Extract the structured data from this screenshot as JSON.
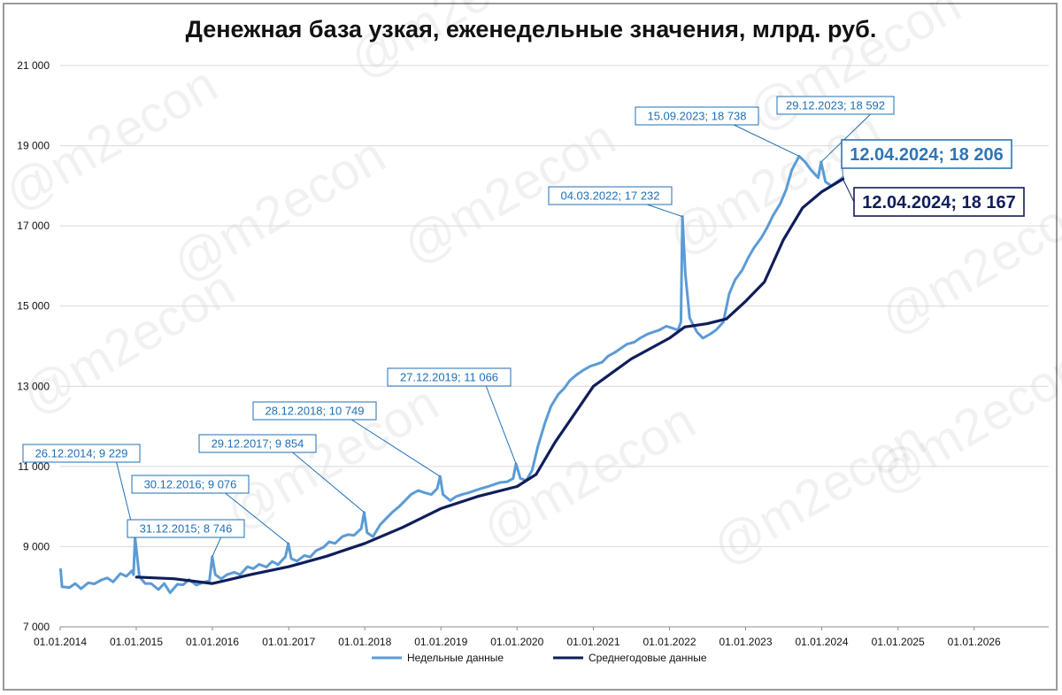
{
  "chart_data": {
    "type": "line",
    "title": "Денежная база узкая, еженедельные значения, млрд. руб.",
    "ylim": [
      7000,
      21000
    ],
    "yticks": [
      7000,
      9000,
      11000,
      13000,
      15000,
      17000,
      19000,
      21000
    ],
    "ytick_labels": [
      "7 000",
      "9 000",
      "11 000",
      "13 000",
      "15 000",
      "17 000",
      "19 000",
      "21 000"
    ],
    "xlim": [
      "2014-01-01",
      "2026-12-31"
    ],
    "xticks": [
      "2014-01-01",
      "2015-01-01",
      "2016-01-01",
      "2017-01-01",
      "2018-01-01",
      "2019-01-01",
      "2020-01-01",
      "2021-01-01",
      "2022-01-01",
      "2023-01-01",
      "2024-01-01",
      "2025-01-01",
      "2026-01-01"
    ],
    "xtick_labels": [
      "01.01.2014",
      "01.01.2015",
      "01.01.2016",
      "01.01.2017",
      "01.01.2018",
      "01.01.2019",
      "01.01.2020",
      "01.01.2021",
      "01.01.2022",
      "01.01.2023",
      "01.01.2024",
      "01.01.2025",
      "01.01.2026"
    ],
    "grid": true,
    "legend_position": "bottom",
    "series": [
      {
        "name": "Недельные данные",
        "color": "#5b9bd5",
        "points": [
          [
            "2014-01-03",
            8430
          ],
          [
            "2014-01-10",
            8000
          ],
          [
            "2014-02-14",
            7980
          ],
          [
            "2014-03-14",
            8080
          ],
          [
            "2014-04-11",
            7950
          ],
          [
            "2014-05-16",
            8100
          ],
          [
            "2014-06-13",
            8070
          ],
          [
            "2014-07-18",
            8170
          ],
          [
            "2014-08-15",
            8220
          ],
          [
            "2014-09-12",
            8120
          ],
          [
            "2014-10-17",
            8330
          ],
          [
            "2014-11-14",
            8260
          ],
          [
            "2014-12-12",
            8400
          ],
          [
            "2014-12-19",
            8300
          ],
          [
            "2014-12-26",
            9229
          ],
          [
            "2015-01-16",
            8250
          ],
          [
            "2015-02-13",
            8080
          ],
          [
            "2015-03-13",
            8080
          ],
          [
            "2015-04-17",
            7930
          ],
          [
            "2015-05-15",
            8080
          ],
          [
            "2015-06-12",
            7850
          ],
          [
            "2015-07-17",
            8060
          ],
          [
            "2015-08-14",
            8050
          ],
          [
            "2015-09-11",
            8180
          ],
          [
            "2015-10-16",
            8040
          ],
          [
            "2015-11-13",
            8100
          ],
          [
            "2015-12-18",
            8150
          ],
          [
            "2015-12-31",
            8746
          ],
          [
            "2016-01-15",
            8300
          ],
          [
            "2016-02-12",
            8200
          ],
          [
            "2016-03-11",
            8300
          ],
          [
            "2016-04-15",
            8360
          ],
          [
            "2016-05-13",
            8300
          ],
          [
            "2016-06-17",
            8500
          ],
          [
            "2016-07-15",
            8450
          ],
          [
            "2016-08-12",
            8560
          ],
          [
            "2016-09-16",
            8490
          ],
          [
            "2016-10-14",
            8630
          ],
          [
            "2016-11-11",
            8550
          ],
          [
            "2016-12-16",
            8750
          ],
          [
            "2016-12-30",
            9076
          ],
          [
            "2017-01-13",
            8700
          ],
          [
            "2017-02-10",
            8640
          ],
          [
            "2017-03-17",
            8780
          ],
          [
            "2017-04-14",
            8740
          ],
          [
            "2017-05-12",
            8900
          ],
          [
            "2017-06-16",
            8980
          ],
          [
            "2017-07-14",
            9120
          ],
          [
            "2017-08-11",
            9080
          ],
          [
            "2017-09-15",
            9250
          ],
          [
            "2017-10-13",
            9300
          ],
          [
            "2017-11-10",
            9280
          ],
          [
            "2017-12-15",
            9450
          ],
          [
            "2017-12-29",
            9854
          ],
          [
            "2018-01-12",
            9350
          ],
          [
            "2018-02-09",
            9250
          ],
          [
            "2018-03-16",
            9550
          ],
          [
            "2018-04-13",
            9700
          ],
          [
            "2018-05-11",
            9850
          ],
          [
            "2018-06-15",
            10000
          ],
          [
            "2018-07-13",
            10150
          ],
          [
            "2018-08-10",
            10300
          ],
          [
            "2018-09-14",
            10400
          ],
          [
            "2018-10-12",
            10350
          ],
          [
            "2018-11-16",
            10300
          ],
          [
            "2018-12-14",
            10450
          ],
          [
            "2018-12-28",
            10749
          ],
          [
            "2019-01-11",
            10300
          ],
          [
            "2019-02-15",
            10150
          ],
          [
            "2019-03-15",
            10250
          ],
          [
            "2019-04-12",
            10300
          ],
          [
            "2019-05-17",
            10350
          ],
          [
            "2019-06-14",
            10400
          ],
          [
            "2019-07-12",
            10450
          ],
          [
            "2019-08-16",
            10500
          ],
          [
            "2019-09-13",
            10550
          ],
          [
            "2019-10-11",
            10600
          ],
          [
            "2019-11-15",
            10620
          ],
          [
            "2019-12-13",
            10700
          ],
          [
            "2019-12-27",
            11066
          ],
          [
            "2020-01-17",
            10700
          ],
          [
            "2020-02-14",
            10650
          ],
          [
            "2020-03-13",
            10900
          ],
          [
            "2020-04-10",
            11500
          ],
          [
            "2020-05-15",
            12100
          ],
          [
            "2020-06-12",
            12500
          ],
          [
            "2020-07-17",
            12800
          ],
          [
            "2020-08-14",
            12950
          ],
          [
            "2020-09-11",
            13150
          ],
          [
            "2020-10-16",
            13300
          ],
          [
            "2020-11-13",
            13400
          ],
          [
            "2020-12-18",
            13500
          ],
          [
            "2021-01-15",
            13550
          ],
          [
            "2021-02-12",
            13600
          ],
          [
            "2021-03-12",
            13750
          ],
          [
            "2021-04-16",
            13850
          ],
          [
            "2021-05-14",
            13950
          ],
          [
            "2021-06-11",
            14050
          ],
          [
            "2021-07-16",
            14100
          ],
          [
            "2021-08-13",
            14200
          ],
          [
            "2021-09-17",
            14300
          ],
          [
            "2021-10-15",
            14350
          ],
          [
            "2021-11-12",
            14400
          ],
          [
            "2021-12-17",
            14500
          ],
          [
            "2022-01-14",
            14450
          ],
          [
            "2022-02-11",
            14400
          ],
          [
            "2022-02-25",
            14600
          ],
          [
            "2022-03-04",
            17232
          ],
          [
            "2022-03-18",
            15800
          ],
          [
            "2022-04-08",
            14700
          ],
          [
            "2022-05-13",
            14350
          ],
          [
            "2022-06-10",
            14200
          ],
          [
            "2022-07-15",
            14300
          ],
          [
            "2022-08-12",
            14400
          ],
          [
            "2022-09-16",
            14600
          ],
          [
            "2022-10-14",
            15300
          ],
          [
            "2022-11-11",
            15650
          ],
          [
            "2022-12-16",
            15900
          ],
          [
            "2023-01-13",
            16200
          ],
          [
            "2023-02-10",
            16450
          ],
          [
            "2023-03-17",
            16700
          ],
          [
            "2023-04-14",
            16950
          ],
          [
            "2023-05-12",
            17250
          ],
          [
            "2023-06-16",
            17550
          ],
          [
            "2023-07-14",
            17900
          ],
          [
            "2023-08-11",
            18400
          ],
          [
            "2023-09-15",
            18738
          ],
          [
            "2023-10-13",
            18600
          ],
          [
            "2023-11-10",
            18400
          ],
          [
            "2023-12-15",
            18200
          ],
          [
            "2023-12-29",
            18592
          ],
          [
            "2024-01-19",
            18100
          ],
          [
            "2024-02-16",
            18000
          ],
          [
            "2024-03-15",
            18100
          ],
          [
            "2024-04-12",
            18206
          ]
        ]
      },
      {
        "name": "Среднегодовые данные",
        "color": "#0f1e5a",
        "points": [
          [
            "2015-01-02",
            8240
          ],
          [
            "2015-07-01",
            8200
          ],
          [
            "2016-01-01",
            8080
          ],
          [
            "2016-07-01",
            8300
          ],
          [
            "2017-01-01",
            8500
          ],
          [
            "2017-07-01",
            8760
          ],
          [
            "2018-01-01",
            9080
          ],
          [
            "2018-07-01",
            9480
          ],
          [
            "2019-01-01",
            9950
          ],
          [
            "2019-07-01",
            10260
          ],
          [
            "2020-01-01",
            10500
          ],
          [
            "2020-04-01",
            10800
          ],
          [
            "2020-07-01",
            11600
          ],
          [
            "2021-01-01",
            13000
          ],
          [
            "2021-07-01",
            13680
          ],
          [
            "2022-01-01",
            14200
          ],
          [
            "2022-03-15",
            14480
          ],
          [
            "2022-07-01",
            14560
          ],
          [
            "2022-10-01",
            14680
          ],
          [
            "2023-01-01",
            15120
          ],
          [
            "2023-04-01",
            15600
          ],
          [
            "2023-07-01",
            16650
          ],
          [
            "2023-10-01",
            17450
          ],
          [
            "2024-01-01",
            17850
          ],
          [
            "2024-04-12",
            18167
          ]
        ]
      }
    ],
    "annotations": [
      {
        "text": "26.12.2014; 9 229",
        "x": "2014-12-26",
        "y": 9229,
        "series": 0
      },
      {
        "text": "31.12.2015; 8 746",
        "x": "2015-12-31",
        "y": 8746,
        "series": 0
      },
      {
        "text": "30.12.2016; 9 076",
        "x": "2016-12-30",
        "y": 9076,
        "series": 0
      },
      {
        "text": "29.12.2017; 9 854",
        "x": "2017-12-29",
        "y": 9854,
        "series": 0
      },
      {
        "text": "28.12.2018; 10 749",
        "x": "2018-12-28",
        "y": 10749,
        "series": 0
      },
      {
        "text": "27.12.2019; 11 066",
        "x": "2019-12-27",
        "y": 11066,
        "series": 0
      },
      {
        "text": "04.03.2022; 17 232",
        "x": "2022-03-04",
        "y": 17232,
        "series": 0
      },
      {
        "text": "15.09.2023; 18 738",
        "x": "2023-09-15",
        "y": 18738,
        "series": 0
      },
      {
        "text": "29.12.2023; 18 592",
        "x": "2023-12-29",
        "y": 18592,
        "series": 0
      },
      {
        "text": "12.04.2024; 18 206",
        "x": "2024-04-12",
        "y": 18206,
        "series": 0
      },
      {
        "text": "12.04.2024; 18 167",
        "x": "2024-04-12",
        "y": 18167,
        "series": 1
      }
    ],
    "watermark": "@m2econ"
  }
}
